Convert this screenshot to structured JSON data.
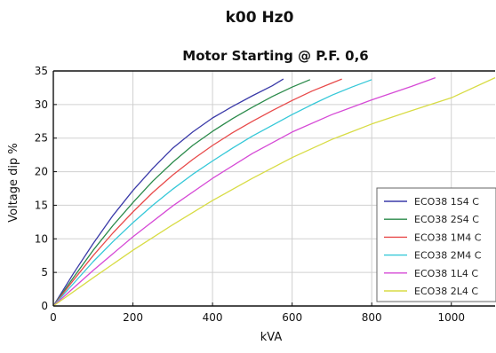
{
  "header": {
    "text": "k00   Hz0"
  },
  "chart_data": {
    "type": "line",
    "title": "Motor Starting @ P.F. 0,6",
    "xlabel": "kVA",
    "ylabel": "Voltage dip %",
    "xlim": [
      0,
      1110
    ],
    "ylim": [
      0,
      35
    ],
    "xticks": [
      0,
      200,
      400,
      600,
      800,
      1000
    ],
    "yticks": [
      0,
      5,
      10,
      15,
      20,
      25,
      30,
      35
    ],
    "grid": true,
    "legend_position": "bottom-right",
    "series": [
      {
        "name": "ECO38 1S4 C",
        "color": "#3a3aa8",
        "x": [
          0,
          50,
          100,
          150,
          200,
          250,
          300,
          350,
          400,
          450,
          500,
          550,
          578
        ],
        "y": [
          0,
          4.8,
          9.3,
          13.5,
          17.2,
          20.5,
          23.5,
          25.9,
          28.0,
          29.7,
          31.3,
          32.8,
          33.8
        ]
      },
      {
        "name": "ECO38 2S4 C",
        "color": "#2a8a4a",
        "x": [
          0,
          50,
          100,
          150,
          200,
          250,
          300,
          350,
          400,
          450,
          500,
          550,
          600,
          645
        ],
        "y": [
          0,
          4.2,
          8.3,
          12.0,
          15.4,
          18.6,
          21.4,
          23.9,
          26.0,
          27.9,
          29.6,
          31.2,
          32.6,
          33.7
        ]
      },
      {
        "name": "ECO38 1M4 C",
        "color": "#e84a4a",
        "x": [
          0,
          50,
          100,
          150,
          200,
          250,
          300,
          350,
          400,
          450,
          500,
          550,
          600,
          650,
          700,
          725
        ],
        "y": [
          0,
          3.8,
          7.5,
          10.9,
          14.0,
          16.9,
          19.5,
          21.8,
          23.9,
          25.8,
          27.5,
          29.1,
          30.6,
          32.0,
          33.2,
          33.8
        ]
      },
      {
        "name": "ECO38 2M4 C",
        "color": "#35c8d8",
        "x": [
          0,
          50,
          100,
          150,
          200,
          250,
          300,
          350,
          400,
          450,
          500,
          550,
          600,
          650,
          700,
          750,
          800
        ],
        "y": [
          0,
          3.3,
          6.6,
          9.6,
          12.4,
          15.0,
          17.4,
          19.6,
          21.6,
          23.5,
          25.3,
          26.9,
          28.5,
          30.0,
          31.4,
          32.6,
          33.7
        ]
      },
      {
        "name": "ECO38 1L4 C",
        "color": "#d64ad6",
        "x": [
          0,
          100,
          200,
          300,
          400,
          500,
          600,
          700,
          800,
          900,
          960
        ],
        "y": [
          0,
          5.3,
          10.3,
          14.9,
          19.0,
          22.7,
          25.9,
          28.5,
          30.7,
          32.7,
          34.0
        ]
      },
      {
        "name": "ECO38 2L4 C",
        "color": "#d8dc45",
        "x": [
          0,
          100,
          200,
          300,
          400,
          500,
          600,
          700,
          800,
          900,
          1000,
          1110
        ],
        "y": [
          0,
          4.2,
          8.3,
          12.1,
          15.7,
          19.0,
          22.1,
          24.8,
          27.1,
          29.1,
          31.0,
          34.0
        ]
      }
    ]
  }
}
